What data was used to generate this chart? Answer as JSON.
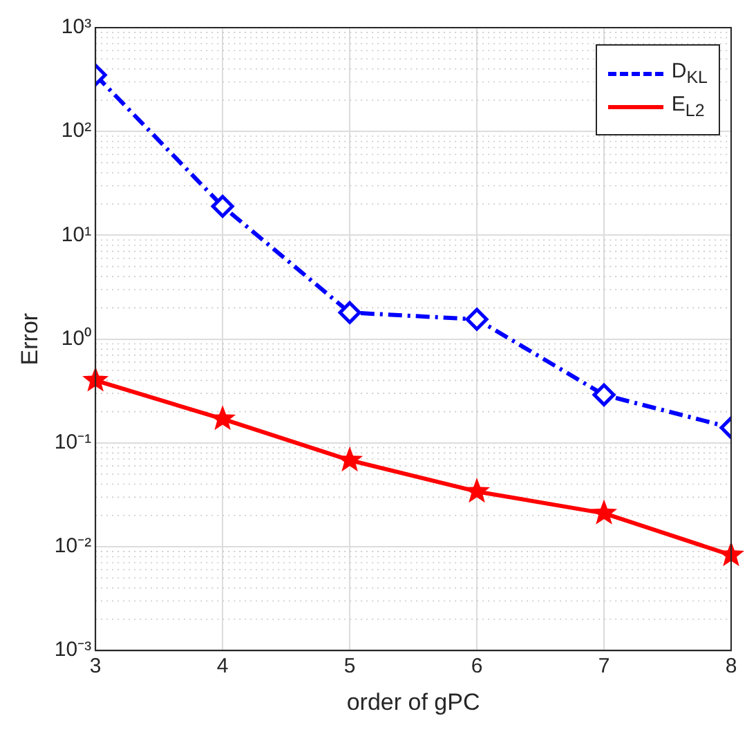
{
  "chart_data": {
    "type": "line",
    "xlabel": "order of gPC",
    "ylabel": "Error",
    "x": [
      3,
      4,
      5,
      6,
      7,
      8
    ],
    "xlim": [
      3,
      8
    ],
    "xticks": [
      3,
      4,
      5,
      6,
      7,
      8
    ],
    "ylim": [
      0.001,
      1000
    ],
    "yticks": [
      {
        "value": 0.001,
        "label": "10⁻³"
      },
      {
        "value": 0.01,
        "label": "10⁻²"
      },
      {
        "value": 0.1,
        "label": "10⁻¹"
      },
      {
        "value": 1,
        "label": "10⁰"
      },
      {
        "value": 10,
        "label": "10¹"
      },
      {
        "value": 100,
        "label": "10²"
      },
      {
        "value": 1000,
        "label": "10³"
      }
    ],
    "log": "y",
    "grid": true,
    "legend": "top right",
    "series": [
      {
        "name": "D$_{KL}$",
        "color": "#0000ff",
        "marker": "diamond",
        "line_style": "dashed",
        "values": [
          350,
          19,
          1.8,
          1.55,
          0.29,
          0.14
        ]
      },
      {
        "name": "E$_{L2}$",
        "color": "#ff0000",
        "marker": "star",
        "line_style": "solid",
        "values": [
          0.4,
          0.17,
          0.068,
          0.034,
          0.021,
          0.0083
        ]
      }
    ]
  }
}
